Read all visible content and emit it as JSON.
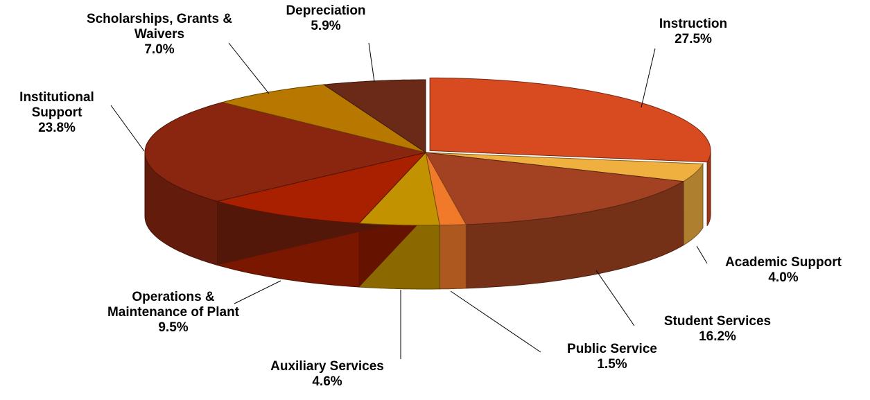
{
  "chart_data": {
    "type": "pie3d",
    "categories": [
      "Instruction",
      "Academic Support",
      "Student Services",
      "Public Service",
      "Auxiliary Services",
      "Operations & Maintenance of Plant",
      "Institutional Support",
      "Scholarships, Grants & Waivers",
      "Depreciation"
    ],
    "values": [
      27.5,
      4.0,
      16.2,
      1.5,
      4.6,
      9.5,
      23.8,
      7.0,
      5.9
    ],
    "value_labels": [
      "27.5%",
      "4.0%",
      "16.2%",
      "1.5%",
      "4.6%",
      "9.5%",
      "23.8%",
      "7.0%",
      "5.9%"
    ],
    "colors": [
      "#d84a20",
      "#f0b040",
      "#a34222",
      "#f07a2a",
      "#c39200",
      "#a82000",
      "#8a2610",
      "#b87800",
      "#6a2a17"
    ]
  }
}
